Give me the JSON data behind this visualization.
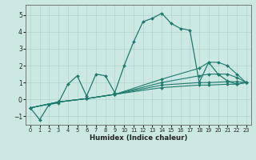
{
  "xlabel": "Humidex (Indice chaleur)",
  "background_color": "#cce8e4",
  "grid_color": "#aed4cf",
  "line_color": "#1e7a6e",
  "xlim": [
    -0.5,
    23.5
  ],
  "ylim": [
    -1.5,
    5.6
  ],
  "yticks": [
    -1,
    0,
    1,
    2,
    3,
    4,
    5
  ],
  "xticks": [
    0,
    1,
    2,
    3,
    4,
    5,
    6,
    7,
    8,
    9,
    10,
    11,
    12,
    13,
    14,
    15,
    16,
    17,
    18,
    19,
    20,
    21,
    22,
    23
  ],
  "main_x": [
    0,
    1,
    2,
    3,
    4,
    5,
    6,
    7,
    8,
    9,
    10,
    11,
    12,
    13,
    14,
    15,
    16,
    17,
    18,
    19,
    20,
    21,
    22,
    23
  ],
  "main_y": [
    -0.5,
    -1.2,
    -0.3,
    -0.2,
    0.9,
    1.4,
    0.2,
    1.5,
    1.4,
    0.4,
    2.0,
    3.4,
    4.6,
    4.8,
    5.1,
    4.5,
    4.2,
    4.1,
    1.0,
    2.2,
    1.5,
    1.1,
    0.9,
    1.0
  ],
  "smooth_lines": [
    {
      "x": [
        0,
        3,
        6,
        9,
        14,
        18,
        19,
        21,
        22,
        23
      ],
      "y": [
        -0.5,
        -0.15,
        0.05,
        0.3,
        0.7,
        0.85,
        0.85,
        0.9,
        0.9,
        1.0
      ]
    },
    {
      "x": [
        0,
        3,
        6,
        9,
        14,
        18,
        19,
        21,
        22,
        23
      ],
      "y": [
        -0.5,
        -0.15,
        0.05,
        0.3,
        0.85,
        1.0,
        1.0,
        1.05,
        1.05,
        1.0
      ]
    },
    {
      "x": [
        0,
        3,
        6,
        9,
        14,
        18,
        19,
        20,
        21,
        22,
        23
      ],
      "y": [
        -0.5,
        -0.15,
        0.05,
        0.3,
        1.0,
        1.4,
        1.5,
        1.5,
        1.5,
        1.3,
        1.0
      ]
    },
    {
      "x": [
        0,
        3,
        6,
        9,
        14,
        18,
        19,
        20,
        21,
        22,
        23
      ],
      "y": [
        -0.5,
        -0.15,
        0.05,
        0.3,
        1.2,
        1.85,
        2.2,
        2.2,
        2.0,
        1.5,
        1.0
      ]
    }
  ]
}
